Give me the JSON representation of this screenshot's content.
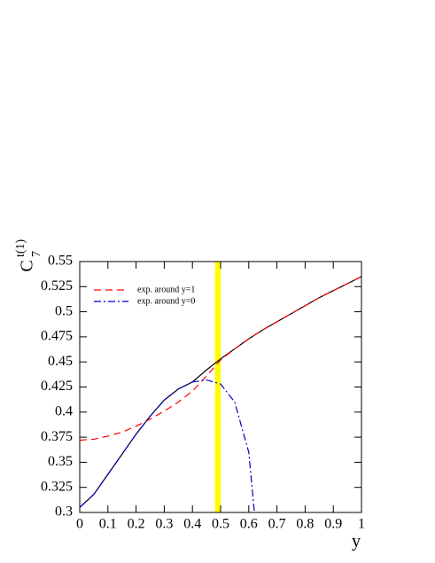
{
  "chart_data": {
    "type": "line",
    "y_label": "C",
    "y_label_sup": "t(1)",
    "y_label_sub": "7",
    "x_label": "y",
    "xlim": [
      0,
      1
    ],
    "ylim": [
      0.3,
      0.55
    ],
    "xticks": [
      0,
      0.1,
      0.2,
      0.3,
      0.4,
      0.5,
      0.6,
      0.7,
      0.8,
      0.9,
      1
    ],
    "yticks": [
      0.3,
      0.325,
      0.35,
      0.375,
      0.4,
      0.425,
      0.45,
      0.475,
      0.5,
      0.525,
      0.55
    ],
    "band": {
      "range": [
        0.48,
        0.5
      ],
      "color": "#ffff00"
    },
    "series": [
      {
        "color": "#000000",
        "dash": "solid",
        "x": [
          0,
          0.05,
          0.1,
          0.15,
          0.2,
          0.25,
          0.3,
          0.35,
          0.4,
          0.45,
          0.5,
          0.55,
          0.6,
          0.65,
          0.7,
          0.75,
          0.8,
          0.85,
          0.9,
          0.95,
          1
        ],
        "values": [
          0.305,
          0.318,
          0.338,
          0.358,
          0.378,
          0.396,
          0.412,
          0.423,
          0.43,
          0.442,
          0.453,
          0.463,
          0.473,
          0.482,
          0.49,
          0.498,
          0.506,
          0.514,
          0.521,
          0.528,
          0.535
        ]
      },
      {
        "name": "exp. around y=1",
        "color": "#ff0000",
        "dash": "dashed",
        "x": [
          0,
          0.05,
          0.1,
          0.15,
          0.2,
          0.25,
          0.3,
          0.35,
          0.4,
          0.45,
          0.5,
          0.55,
          0.6,
          0.65,
          0.7,
          0.75,
          0.8,
          0.85,
          0.9,
          0.95,
          1
        ],
        "values": [
          0.372,
          0.373,
          0.376,
          0.38,
          0.386,
          0.393,
          0.401,
          0.41,
          0.421,
          0.436,
          0.452,
          0.463,
          0.473,
          0.482,
          0.49,
          0.498,
          0.506,
          0.514,
          0.521,
          0.528,
          0.535
        ]
      },
      {
        "name": "exp. around y=0",
        "color": "#0000cc",
        "dash": "dashdot",
        "x": [
          0,
          0.05,
          0.1,
          0.15,
          0.2,
          0.25,
          0.3,
          0.35,
          0.4,
          0.45,
          0.5,
          0.55,
          0.6,
          0.62
        ],
        "values": [
          0.305,
          0.318,
          0.338,
          0.358,
          0.378,
          0.396,
          0.412,
          0.423,
          0.43,
          0.432,
          0.428,
          0.41,
          0.36,
          0.3
        ]
      }
    ]
  }
}
